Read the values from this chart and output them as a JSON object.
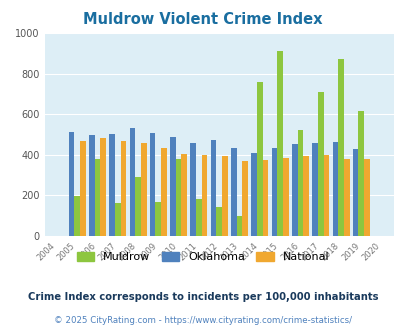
{
  "title": "Muldrow Violent Crime Index",
  "years": [
    2004,
    2005,
    2006,
    2007,
    2008,
    2009,
    2010,
    2011,
    2012,
    2013,
    2014,
    2015,
    2016,
    2017,
    2018,
    2019,
    2020
  ],
  "muldrow": [
    0,
    195,
    380,
    162,
    290,
    165,
    380,
    180,
    145,
    98,
    760,
    912,
    522,
    707,
    870,
    615,
    0
  ],
  "oklahoma": [
    0,
    510,
    497,
    502,
    530,
    505,
    488,
    460,
    472,
    435,
    408,
    432,
    452,
    457,
    463,
    430,
    0
  ],
  "national": [
    0,
    469,
    481,
    469,
    457,
    433,
    405,
    397,
    394,
    370,
    376,
    383,
    395,
    397,
    381,
    381,
    0
  ],
  "muldrow_color": "#8dc63f",
  "oklahoma_color": "#4f81bd",
  "national_color": "#f0a830",
  "bg_color": "#ddeef6",
  "title_color": "#1a6ea0",
  "subtitle": "Crime Index corresponds to incidents per 100,000 inhabitants",
  "subtitle_color": "#1a3a5c",
  "footer": "© 2025 CityRating.com - https://www.cityrating.com/crime-statistics/",
  "footer_color": "#4f81bd",
  "ylim": [
    0,
    1000
  ],
  "yticks": [
    0,
    200,
    400,
    600,
    800,
    1000
  ]
}
